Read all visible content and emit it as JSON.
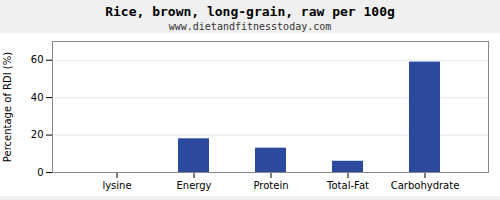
{
  "chart_data": {
    "type": "bar",
    "title": "Rice, brown, long-grain, raw per 100g",
    "subtitle": "www.dietandfitnesstoday.com",
    "categories": [
      "lysine",
      "Energy",
      "Protein",
      "Total-Fat",
      "Carbohydrate"
    ],
    "values": [
      0,
      18,
      13,
      6,
      59
    ],
    "color": "#2b4a9e",
    "ylabel": "Percentage of RDI (%)",
    "ylim": [
      0,
      70
    ],
    "yticks": [
      0,
      20,
      40,
      60
    ],
    "grid": true
  }
}
